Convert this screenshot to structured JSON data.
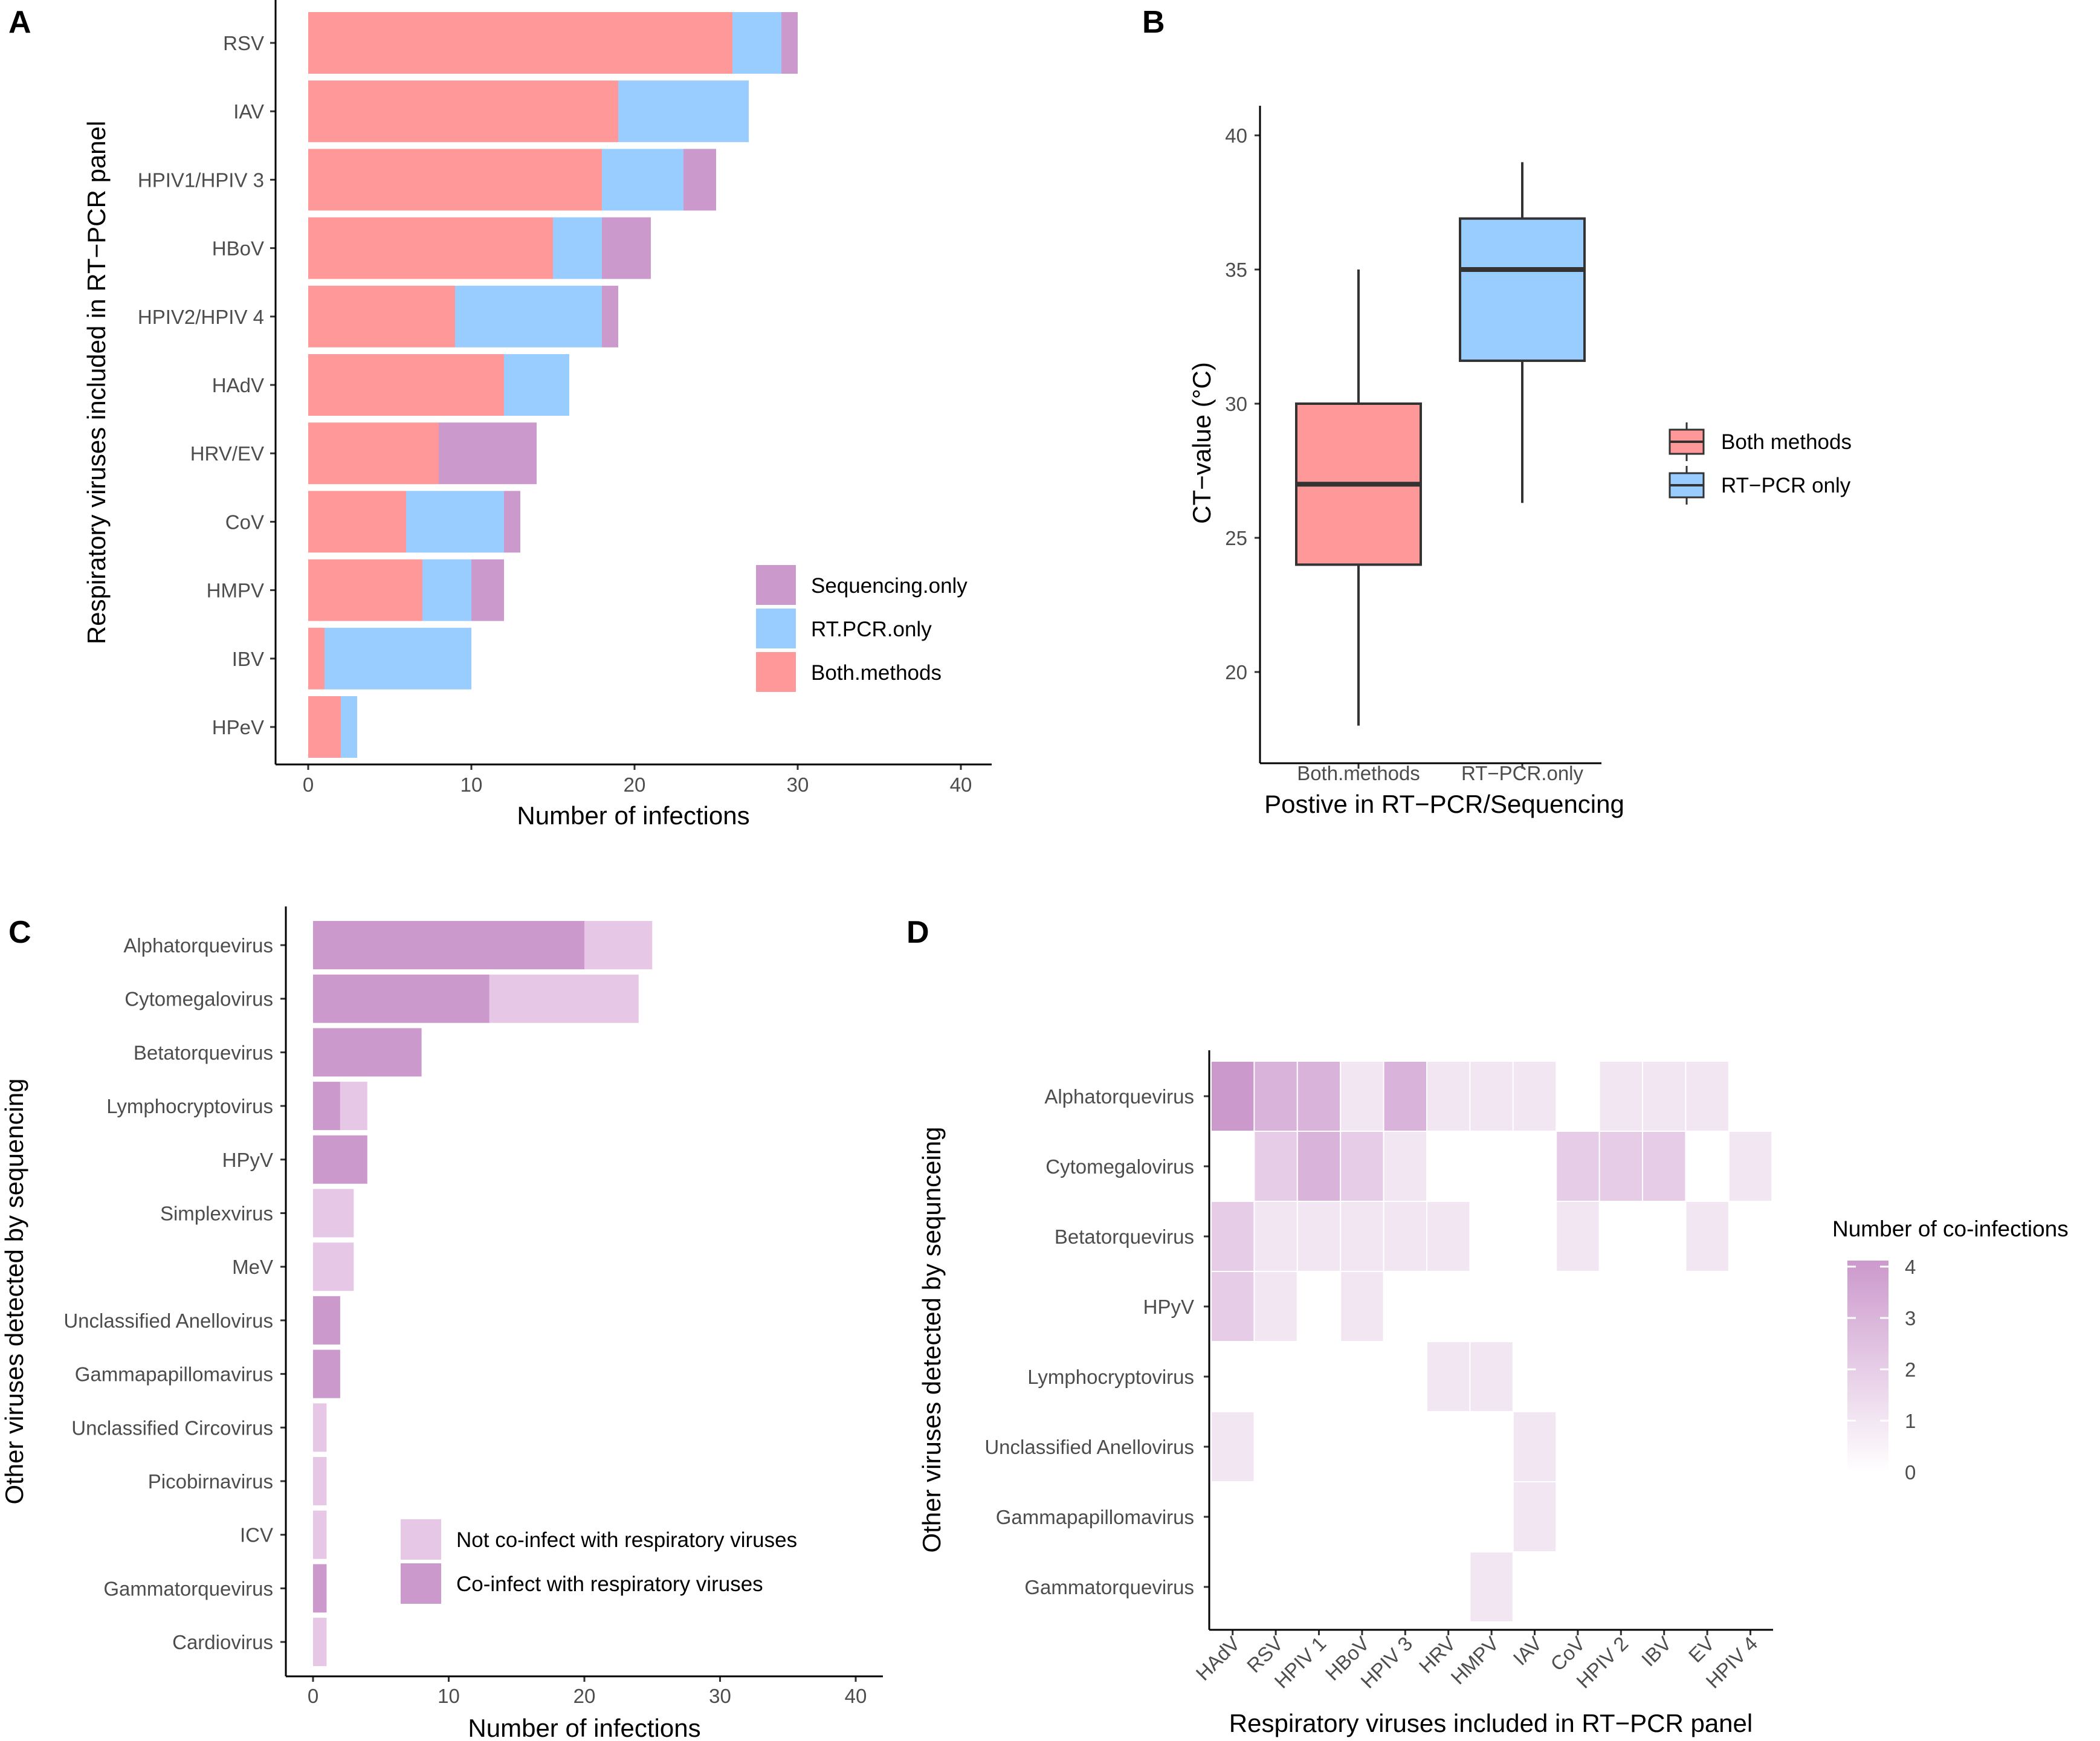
{
  "panel_labels": [
    "A",
    "B",
    "C",
    "D"
  ],
  "colors": {
    "both": "#FF9999",
    "rtpcr": "#99CCFF",
    "seq": "#CC99CC",
    "co_infect": "#CC99CC",
    "not_co_infect": "#E6C8E6",
    "heat_low": "#FFFFFF",
    "heat_high": "#CC99CC"
  },
  "chart_data": [
    {
      "panel": "A",
      "type": "bar",
      "orientation": "horizontal",
      "stacked": true,
      "categories": [
        "RSV",
        "IAV",
        "HPIV1/HPIV 3",
        "HBoV",
        "HPIV2/HPIV 4",
        "HAdV",
        "HRV/EV",
        "CoV",
        "HMPV",
        "IBV",
        "HPeV"
      ],
      "series": [
        {
          "name": "Both.methods",
          "values": [
            26,
            19,
            18,
            15,
            9,
            12,
            8,
            6,
            7,
            1,
            2
          ]
        },
        {
          "name": "RT.PCR.only",
          "values": [
            3,
            8,
            5,
            3,
            9,
            4,
            0,
            6,
            3,
            9,
            1
          ]
        },
        {
          "name": "Sequencing.only",
          "values": [
            1,
            0,
            2,
            3,
            1,
            0,
            6,
            1,
            2,
            0,
            0
          ]
        }
      ],
      "legend_order": [
        "Sequencing.only",
        "RT.PCR.only",
        "Both.methods"
      ],
      "xlabel": "Number of infections",
      "ylabel": "Respiratory viruses included in RT−PCR panel",
      "xlim": [
        0,
        40
      ],
      "xticks": [
        0,
        10,
        20,
        30,
        40
      ],
      "legend_position": "bottom-right"
    },
    {
      "panel": "B",
      "type": "boxplot",
      "categories": [
        "Both.methods",
        "RT−PCR.only"
      ],
      "boxes": [
        {
          "name": "Both.methods",
          "min": 18,
          "q1": 24,
          "median": 27,
          "q3": 30,
          "max": 35
        },
        {
          "name": "RT−PCR.only",
          "min": 26.3,
          "q1": 31.6,
          "median": 35,
          "q3": 36.9,
          "max": 39
        }
      ],
      "legend": [
        "Both  methods",
        "RT−PCR only"
      ],
      "xlabel": "Postive in RT−PCR/Sequencing",
      "ylabel": "CT−value (°C)",
      "ylim": [
        16.5,
        41.5
      ],
      "yticks": [
        20,
        25,
        30,
        35,
        40
      ],
      "legend_position": "right"
    },
    {
      "panel": "C",
      "type": "bar",
      "orientation": "horizontal",
      "stacked": true,
      "categories": [
        "Alphatorquevirus",
        "Cytomegalovirus",
        "Betatorquevirus",
        "Lymphocryptovirus",
        "HPyV",
        "Simplexvirus",
        "MeV",
        "Unclassified Anellovirus",
        "Gammapapillomavirus",
        "Unclassified Circovirus",
        "Picobirnavirus",
        "ICV",
        "Gammatorquevirus",
        "Cardiovirus"
      ],
      "series": [
        {
          "name": "Co-infect with respiratory viruses",
          "values": [
            20,
            13,
            8,
            2,
            4,
            0,
            0,
            2,
            2,
            0,
            0,
            0,
            1,
            0
          ]
        },
        {
          "name": "Not co-infect with respiratory viruses",
          "values": [
            5,
            11,
            0,
            2,
            0,
            3,
            3,
            0,
            0,
            1,
            1,
            1,
            0,
            1
          ]
        }
      ],
      "legend_order": [
        "Not co-infect with respiratory viruses",
        "Co-infect with respiratory viruses"
      ],
      "xlabel": "Number of infections",
      "ylabel": "Other viruses detected by sequencing",
      "xlim": [
        0,
        40
      ],
      "xticks": [
        0,
        10,
        20,
        30,
        40
      ],
      "legend_position": "bottom-right"
    },
    {
      "panel": "D",
      "type": "heatmap",
      "x_categories": [
        "HAdV",
        "RSV",
        "HPIV 1",
        "HBoV",
        "HPIV 3",
        "HRV",
        "HMPV",
        "IAV",
        "CoV",
        "HPIV 2",
        "IBV",
        "EV",
        "HPIV 4"
      ],
      "y_categories": [
        "Alphatorquevirus",
        "Cytomegalovirus",
        "Betatorquevirus",
        "HPyV",
        "Lymphocryptovirus",
        "Unclassified Anellovirus",
        "Gammapapillomavirus",
        "Gammatorquevirus"
      ],
      "cells": [
        {
          "y": "Alphatorquevirus",
          "x": "HAdV",
          "value": 4
        },
        {
          "y": "Alphatorquevirus",
          "x": "RSV",
          "value": 3
        },
        {
          "y": "Alphatorquevirus",
          "x": "HPIV 1",
          "value": 3
        },
        {
          "y": "Alphatorquevirus",
          "x": "HBoV",
          "value": 1
        },
        {
          "y": "Alphatorquevirus",
          "x": "HPIV 3",
          "value": 3
        },
        {
          "y": "Alphatorquevirus",
          "x": "HRV",
          "value": 1
        },
        {
          "y": "Alphatorquevirus",
          "x": "HMPV",
          "value": 1
        },
        {
          "y": "Alphatorquevirus",
          "x": "IAV",
          "value": 1
        },
        {
          "y": "Alphatorquevirus",
          "x": "HPIV 2",
          "value": 1
        },
        {
          "y": "Alphatorquevirus",
          "x": "IBV",
          "value": 1
        },
        {
          "y": "Alphatorquevirus",
          "x": "EV",
          "value": 1
        },
        {
          "y": "Cytomegalovirus",
          "x": "RSV",
          "value": 2
        },
        {
          "y": "Cytomegalovirus",
          "x": "HPIV 1",
          "value": 3
        },
        {
          "y": "Cytomegalovirus",
          "x": "HBoV",
          "value": 2
        },
        {
          "y": "Cytomegalovirus",
          "x": "HPIV 3",
          "value": 1
        },
        {
          "y": "Cytomegalovirus",
          "x": "CoV",
          "value": 2
        },
        {
          "y": "Cytomegalovirus",
          "x": "HPIV 2",
          "value": 2
        },
        {
          "y": "Cytomegalovirus",
          "x": "IBV",
          "value": 2
        },
        {
          "y": "Cytomegalovirus",
          "x": "HPIV 4",
          "value": 1
        },
        {
          "y": "Betatorquevirus",
          "x": "HAdV",
          "value": 2
        },
        {
          "y": "Betatorquevirus",
          "x": "RSV",
          "value": 1
        },
        {
          "y": "Betatorquevirus",
          "x": "HPIV 1",
          "value": 1
        },
        {
          "y": "Betatorquevirus",
          "x": "HBoV",
          "value": 1
        },
        {
          "y": "Betatorquevirus",
          "x": "HPIV 3",
          "value": 1
        },
        {
          "y": "Betatorquevirus",
          "x": "HRV",
          "value": 1
        },
        {
          "y": "Betatorquevirus",
          "x": "CoV",
          "value": 1
        },
        {
          "y": "Betatorquevirus",
          "x": "EV",
          "value": 1
        },
        {
          "y": "HPyV",
          "x": "HAdV",
          "value": 2
        },
        {
          "y": "HPyV",
          "x": "RSV",
          "value": 1
        },
        {
          "y": "HPyV",
          "x": "HBoV",
          "value": 1
        },
        {
          "y": "Lymphocryptovirus",
          "x": "HRV",
          "value": 1
        },
        {
          "y": "Lymphocryptovirus",
          "x": "HMPV",
          "value": 1
        },
        {
          "y": "Unclassified Anellovirus",
          "x": "HAdV",
          "value": 1
        },
        {
          "y": "Unclassified Anellovirus",
          "x": "IAV",
          "value": 1
        },
        {
          "y": "Gammapapillomavirus",
          "x": "IAV",
          "value": 1
        },
        {
          "y": "Gammatorquevirus",
          "x": "HMPV",
          "value": 1
        }
      ],
      "color_scale": {
        "title": "Number of co-infections",
        "min": 0,
        "max": 4,
        "ticks": [
          0,
          1,
          2,
          3,
          4
        ]
      },
      "xlabel": "Respiratory viruses included in RT−PCR panel",
      "ylabel": "Other viruses detected by sequnceing",
      "legend_position": "right"
    }
  ]
}
